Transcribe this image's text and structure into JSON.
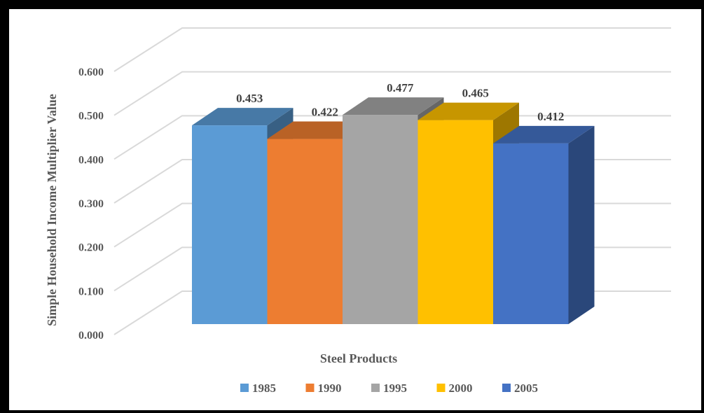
{
  "chart_data": {
    "type": "bar",
    "style": "3d-column",
    "categories": [
      "Steel Products"
    ],
    "xlabel": "Steel Products",
    "ylabel": "Simple Household Income Multiplier Value",
    "ylim": [
      0,
      0.6
    ],
    "yticks": [
      "0.000",
      "0.100",
      "0.200",
      "0.300",
      "0.400",
      "0.500",
      "0.600"
    ],
    "grid": true,
    "legend_position": "bottom",
    "series": [
      {
        "name": "1985",
        "values": [
          0.453
        ],
        "label": "0.453",
        "color": "#5B9BD5"
      },
      {
        "name": "1990",
        "values": [
          0.422
        ],
        "label": "0.422",
        "color": "#ED7D31"
      },
      {
        "name": "1995",
        "values": [
          0.477
        ],
        "label": "0.477",
        "color": "#A5A5A5"
      },
      {
        "name": "2000",
        "values": [
          0.465
        ],
        "label": "0.465",
        "color": "#FFC000"
      },
      {
        "name": "2005",
        "values": [
          0.412
        ],
        "label": "0.412",
        "color": "#4472C4"
      }
    ]
  }
}
